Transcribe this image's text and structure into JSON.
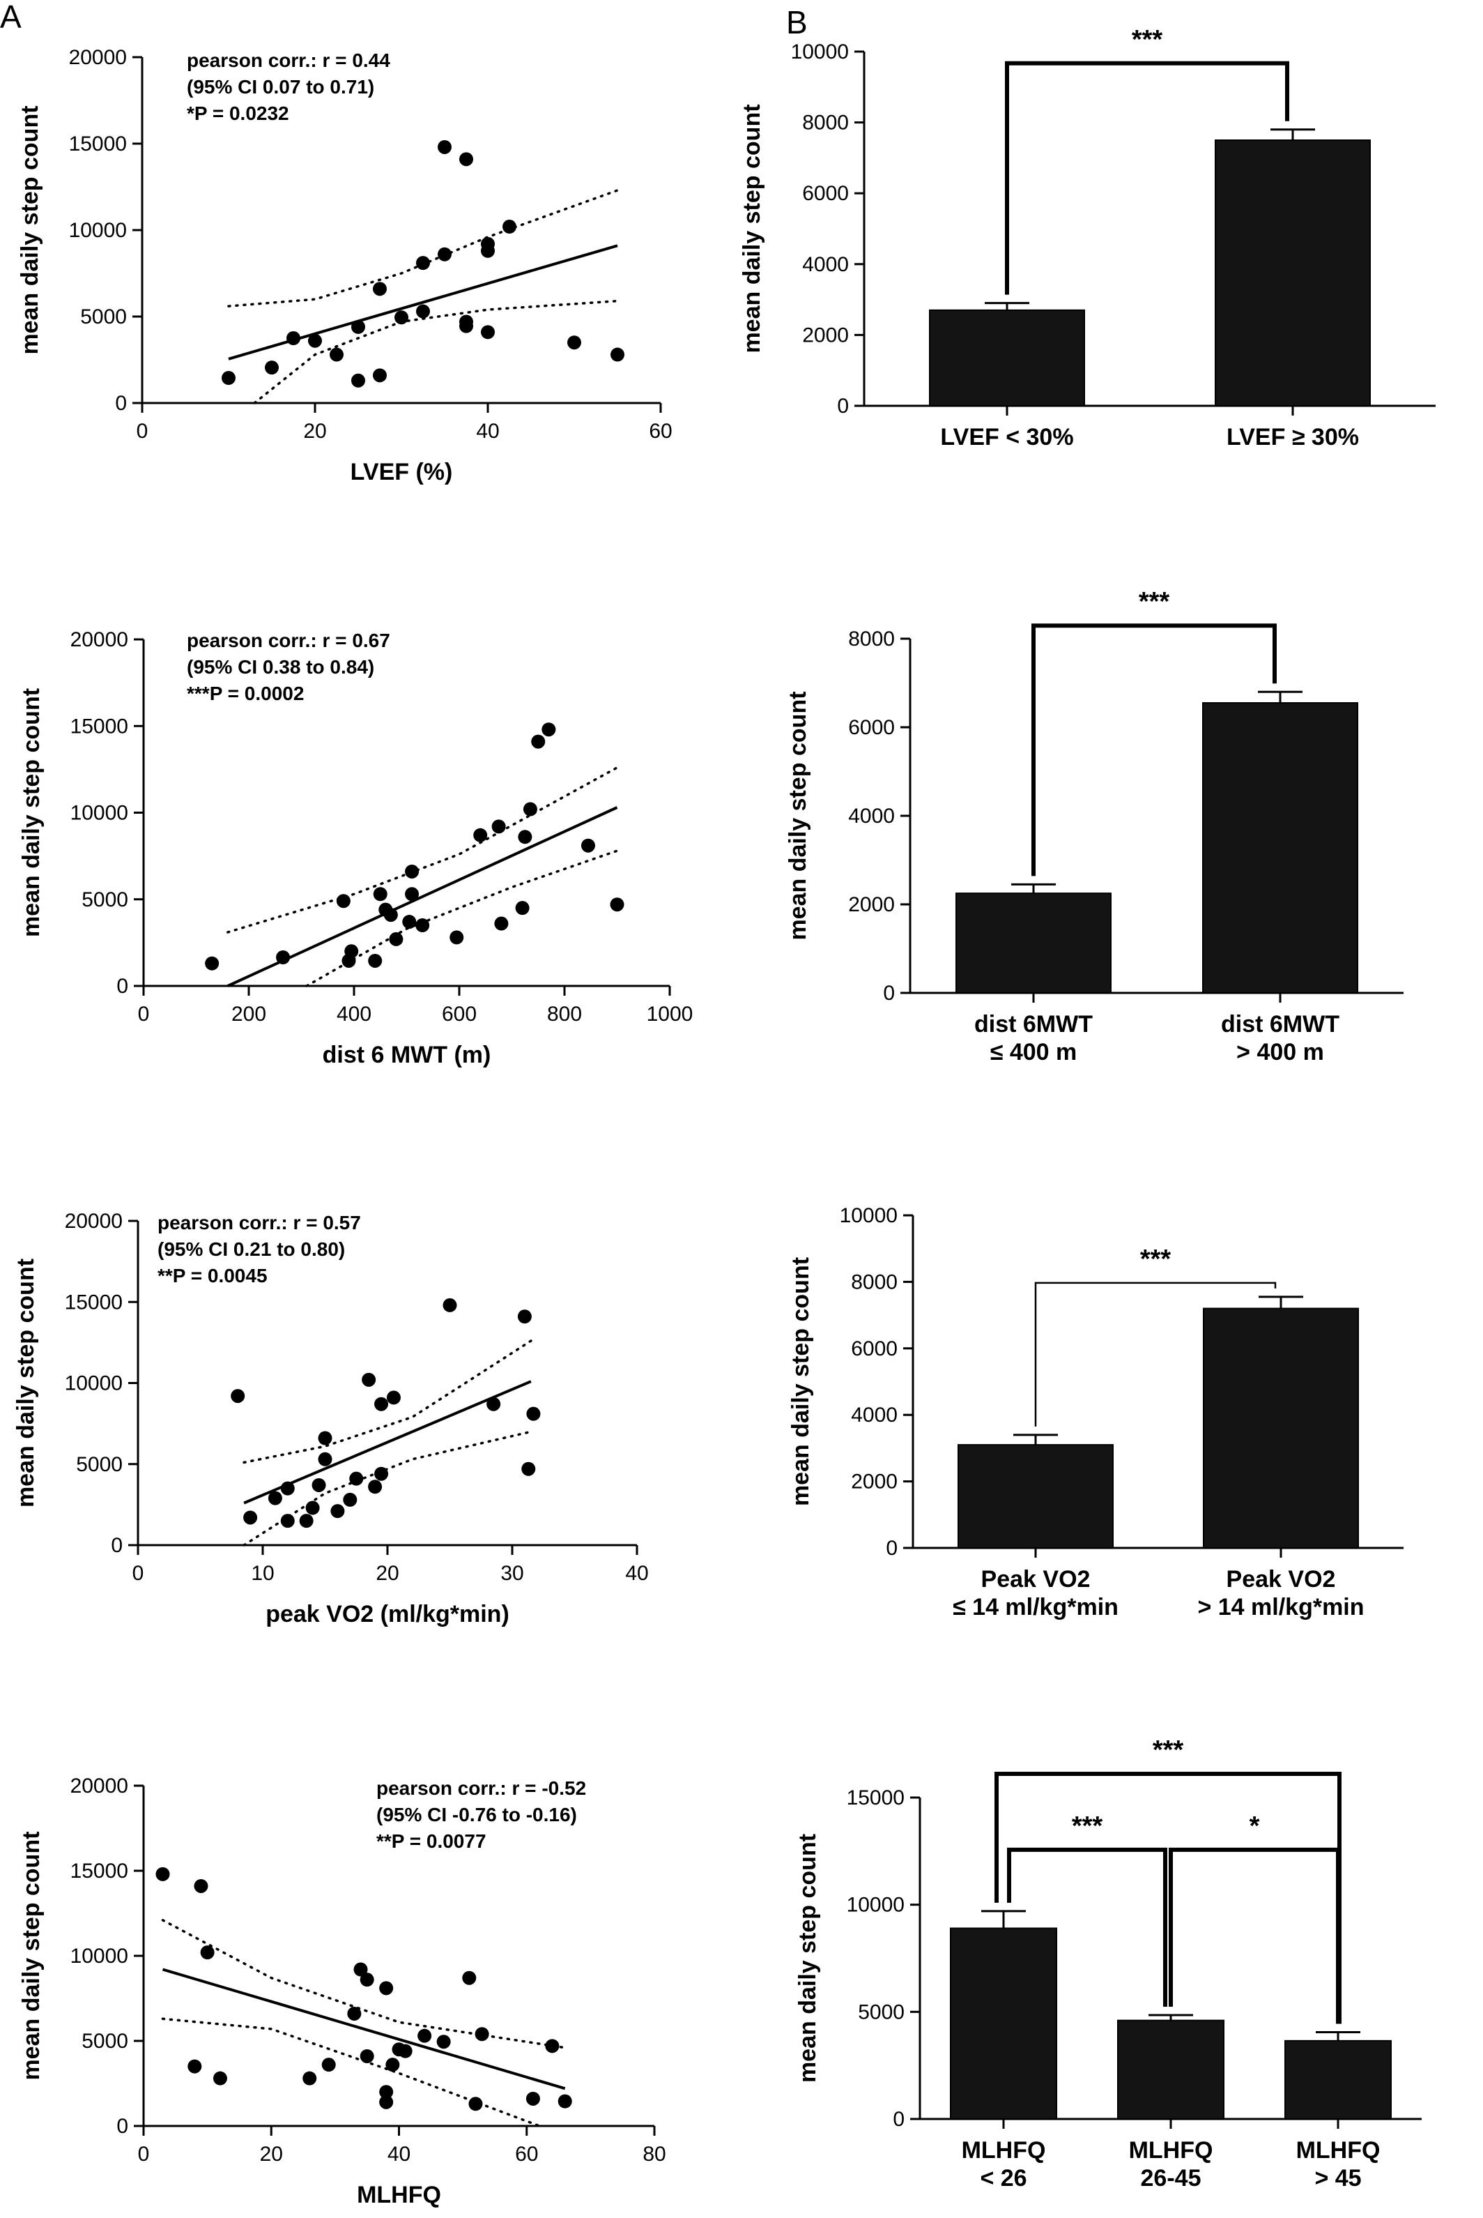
{
  "panel_labels": {
    "a": "A",
    "b": "B"
  },
  "chart_data": [
    {
      "id": "a1",
      "type": "scatter",
      "xlabel": "LVEF (%)",
      "ylabel": "mean daily step count",
      "xlim": [
        0,
        60
      ],
      "ylim": [
        0,
        20000
      ],
      "xticks": [
        0,
        20,
        40,
        60
      ],
      "yticks": [
        0,
        5000,
        10000,
        15000,
        20000
      ],
      "annotation": {
        "line1": "pearson corr.: r = 0.44",
        "line2": "(95% CI 0.07 to 0.71)",
        "line3": "*P = 0.0232"
      },
      "points": [
        [
          10,
          1450
        ],
        [
          15,
          2050
        ],
        [
          17.5,
          3750
        ],
        [
          20,
          3600
        ],
        [
          22.5,
          2800
        ],
        [
          25,
          4400
        ],
        [
          25,
          1300
        ],
        [
          27.5,
          1600
        ],
        [
          27.5,
          6600
        ],
        [
          30,
          4950
        ],
        [
          32.5,
          8100
        ],
        [
          32.5,
          5300
        ],
        [
          35,
          8600
        ],
        [
          35,
          14800
        ],
        [
          37.5,
          14100
        ],
        [
          37.5,
          4700
        ],
        [
          37.5,
          4450
        ],
        [
          40,
          9200
        ],
        [
          40,
          8800
        ],
        [
          40,
          4100
        ],
        [
          42.5,
          10200
        ],
        [
          50,
          3500
        ],
        [
          55,
          2800
        ]
      ],
      "fit": [
        [
          10,
          2550
        ],
        [
          55,
          9100
        ]
      ],
      "ci_upper": [
        [
          10,
          5600
        ],
        [
          20,
          6000
        ],
        [
          30,
          7500
        ],
        [
          40,
          9600
        ],
        [
          55,
          12300
        ]
      ],
      "ci_lower": [
        [
          13,
          0
        ],
        [
          20,
          2800
        ],
        [
          30,
          4700
        ],
        [
          40,
          5400
        ],
        [
          55,
          5900
        ]
      ]
    },
    {
      "id": "b1",
      "type": "bar",
      "ylabel": "mean daily step count",
      "ylim": [
        0,
        10000
      ],
      "yticks": [
        0,
        2000,
        4000,
        6000,
        8000,
        10000
      ],
      "categories": [
        [
          "LVEF < 30%"
        ],
        [
          "LVEF ≥ 30%"
        ]
      ],
      "values": [
        2700,
        7500
      ],
      "errors": [
        200,
        300
      ],
      "comparisons": [
        {
          "from": 0,
          "to": 1,
          "label": "***"
        }
      ]
    },
    {
      "id": "a2",
      "type": "scatter",
      "xlabel": "dist 6 MWT (m)",
      "ylabel": "mean daily step count",
      "xlim": [
        0,
        1000
      ],
      "ylim": [
        0,
        20000
      ],
      "xticks": [
        0,
        200,
        400,
        600,
        800,
        1000
      ],
      "yticks": [
        0,
        5000,
        10000,
        15000,
        20000
      ],
      "annotation": {
        "line1": "pearson corr.: r = 0.67",
        "line2": "(95% CI 0.38 to 0.84)",
        "line3": "***P = 0.0002"
      },
      "points": [
        [
          130,
          1300
        ],
        [
          265,
          1650
        ],
        [
          380,
          4900
        ],
        [
          390,
          1450
        ],
        [
          395,
          2000
        ],
        [
          440,
          1450
        ],
        [
          450,
          5300
        ],
        [
          460,
          4400
        ],
        [
          470,
          4100
        ],
        [
          480,
          2700
        ],
        [
          505,
          3700
        ],
        [
          510,
          6600
        ],
        [
          510,
          5300
        ],
        [
          530,
          3500
        ],
        [
          595,
          2800
        ],
        [
          640,
          8700
        ],
        [
          675,
          9200
        ],
        [
          680,
          3600
        ],
        [
          720,
          4500
        ],
        [
          725,
          8600
        ],
        [
          735,
          10200
        ],
        [
          750,
          14100
        ],
        [
          770,
          14800
        ],
        [
          845,
          8100
        ],
        [
          900,
          4700
        ]
      ],
      "fit": [
        [
          160,
          0
        ],
        [
          900,
          10300
        ]
      ],
      "ci_upper": [
        [
          160,
          3100
        ],
        [
          400,
          5300
        ],
        [
          600,
          7600
        ],
        [
          900,
          12600
        ]
      ],
      "ci_lower": [
        [
          310,
          0
        ],
        [
          500,
          3300
        ],
        [
          700,
          5700
        ],
        [
          900,
          7800
        ]
      ]
    },
    {
      "id": "b2",
      "type": "bar",
      "ylabel": "mean daily step count",
      "ylim": [
        0,
        8000
      ],
      "yticks": [
        0,
        2000,
        4000,
        6000,
        8000
      ],
      "categories": [
        [
          "dist 6MWT",
          "≤ 400 m"
        ],
        [
          "dist 6MWT",
          "> 400 m"
        ]
      ],
      "values": [
        2250,
        6550
      ],
      "errors": [
        200,
        250
      ],
      "comparisons": [
        {
          "from": 0,
          "to": 1,
          "label": "***"
        }
      ]
    },
    {
      "id": "a3",
      "type": "scatter",
      "xlabel": "peak VO2 (ml/kg*min)",
      "ylabel": "mean daily step count",
      "xlim": [
        0,
        40
      ],
      "ylim": [
        0,
        20000
      ],
      "xticks": [
        0,
        10,
        20,
        30,
        40
      ],
      "yticks": [
        0,
        5000,
        10000,
        15000,
        20000
      ],
      "annotation": {
        "line1": "pearson corr.: r = 0.57",
        "line2": "(95% CI 0.21 to 0.80)",
        "line3": "**P = 0.0045"
      },
      "points": [
        [
          8,
          9200
        ],
        [
          9,
          1700
        ],
        [
          11,
          2900
        ],
        [
          12,
          1500
        ],
        [
          12,
          3500
        ],
        [
          13.5,
          1500
        ],
        [
          14,
          2300
        ],
        [
          14.5,
          3700
        ],
        [
          15,
          6600
        ],
        [
          15,
          5300
        ],
        [
          16,
          2100
        ],
        [
          17,
          2800
        ],
        [
          17.5,
          4100
        ],
        [
          18.5,
          10200
        ],
        [
          19,
          3600
        ],
        [
          19.5,
          4400
        ],
        [
          19.5,
          8700
        ],
        [
          20.5,
          9100
        ],
        [
          25,
          14800
        ],
        [
          28.5,
          8700
        ],
        [
          31,
          14100
        ],
        [
          31.3,
          4700
        ],
        [
          31.7,
          8100
        ]
      ],
      "fit": [
        [
          8.5,
          2600
        ],
        [
          31.5,
          10100
        ]
      ],
      "ci_upper": [
        [
          8.5,
          5100
        ],
        [
          15,
          6100
        ],
        [
          22,
          7900
        ],
        [
          31.5,
          12600
        ]
      ],
      "ci_lower": [
        [
          8.5,
          0
        ],
        [
          15,
          3200
        ],
        [
          22,
          5300
        ],
        [
          31.5,
          7000
        ]
      ]
    },
    {
      "id": "b3",
      "type": "bar",
      "ylabel": "mean daily step count",
      "ylim": [
        0,
        10000
      ],
      "yticks": [
        0,
        2000,
        4000,
        6000,
        8000,
        10000
      ],
      "categories": [
        [
          "Peak VO2",
          "≤ 14 ml/kg*min"
        ],
        [
          "Peak VO2",
          "> 14 ml/kg*min"
        ]
      ],
      "values": [
        3100,
        7200
      ],
      "errors": [
        300,
        350
      ],
      "comparisons": [
        {
          "from": 0,
          "to": 1,
          "label": "***"
        }
      ]
    },
    {
      "id": "a4",
      "type": "scatter",
      "xlabel": "MLHFQ",
      "ylabel": "mean daily step count",
      "xlim": [
        0,
        80
      ],
      "ylim": [
        0,
        20000
      ],
      "xticks": [
        0,
        20,
        40,
        60,
        80
      ],
      "yticks": [
        0,
        5000,
        10000,
        15000,
        20000
      ],
      "annotation": {
        "line1": "pearson corr.: r = -0.52",
        "line2": "(95% CI -0.76 to -0.16)",
        "line3": "**P = 0.0077"
      },
      "points": [
        [
          3,
          14800
        ],
        [
          8,
          3500
        ],
        [
          9,
          14100
        ],
        [
          10,
          10200
        ],
        [
          12,
          2800
        ],
        [
          26,
          2800
        ],
        [
          29,
          3600
        ],
        [
          33,
          6600
        ],
        [
          34,
          9200
        ],
        [
          35,
          8600
        ],
        [
          35,
          4100
        ],
        [
          38,
          8100
        ],
        [
          38,
          2000
        ],
        [
          38,
          1400
        ],
        [
          39,
          3600
        ],
        [
          40,
          4500
        ],
        [
          41,
          4400
        ],
        [
          44,
          5300
        ],
        [
          47,
          4950
        ],
        [
          51,
          8700
        ],
        [
          52,
          1300
        ],
        [
          53,
          5400
        ],
        [
          61,
          1600
        ],
        [
          64,
          4700
        ],
        [
          66,
          1450
        ]
      ],
      "fit": [
        [
          3,
          9200
        ],
        [
          66,
          2200
        ]
      ],
      "ci_upper": [
        [
          3,
          12100
        ],
        [
          20,
          8700
        ],
        [
          40,
          6100
        ],
        [
          66,
          4600
        ]
      ],
      "ci_lower": [
        [
          3,
          6300
        ],
        [
          20,
          5700
        ],
        [
          40,
          3100
        ],
        [
          62,
          0
        ]
      ]
    },
    {
      "id": "b4",
      "type": "bar",
      "ylabel": "mean daily step count",
      "ylim": [
        0,
        15000
      ],
      "yticks": [
        0,
        5000,
        10000,
        15000
      ],
      "categories": [
        [
          "MLHFQ",
          "< 26"
        ],
        [
          "MLHFQ",
          "26-45"
        ],
        [
          "MLHFQ",
          "> 45"
        ]
      ],
      "values": [
        8900,
        4600,
        3650
      ],
      "errors": [
        800,
        250,
        400
      ],
      "comparisons": [
        {
          "from": 0,
          "to": 1,
          "label": "***"
        },
        {
          "from": 1,
          "to": 2,
          "label": "*"
        },
        {
          "from": 0,
          "to": 2,
          "label": "***"
        }
      ]
    }
  ]
}
